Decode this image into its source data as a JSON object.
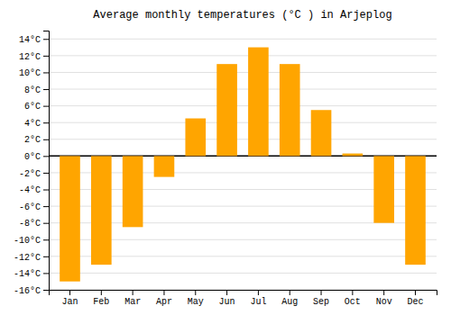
{
  "chart_data": {
    "type": "bar",
    "title": "Average monthly temperatures (°C ) in Arjeplog",
    "categories": [
      "Jan",
      "Feb",
      "Mar",
      "Apr",
      "May",
      "Jun",
      "Jul",
      "Aug",
      "Sep",
      "Oct",
      "Nov",
      "Dec"
    ],
    "values": [
      -15.0,
      -13.0,
      -8.5,
      -2.5,
      4.5,
      11.0,
      13.0,
      11.0,
      5.5,
      0.3,
      -8.0,
      -13.0
    ],
    "color": "#FFA500",
    "ylim": [
      -16,
      15
    ],
    "yticks": [
      {
        "value": -16,
        "label": "-16°C"
      },
      {
        "value": -14,
        "label": "-14°C"
      },
      {
        "value": -12,
        "label": "-12°C"
      },
      {
        "value": -10,
        "label": "-10°C"
      },
      {
        "value": -8,
        "label": "-8°C"
      },
      {
        "value": -6,
        "label": "-6°C"
      },
      {
        "value": -4,
        "label": "-4°C"
      },
      {
        "value": -2,
        "label": "-2°C"
      },
      {
        "value": 0,
        "label": "0°C"
      },
      {
        "value": 2,
        "label": "2°C"
      },
      {
        "value": 4,
        "label": "4°C"
      },
      {
        "value": 6,
        "label": "6°C"
      },
      {
        "value": 8,
        "label": "8°C"
      },
      {
        "value": 10,
        "label": "10°C"
      },
      {
        "value": 12,
        "label": "12°C"
      },
      {
        "value": 14,
        "label": "14°C"
      }
    ],
    "grid": true
  }
}
